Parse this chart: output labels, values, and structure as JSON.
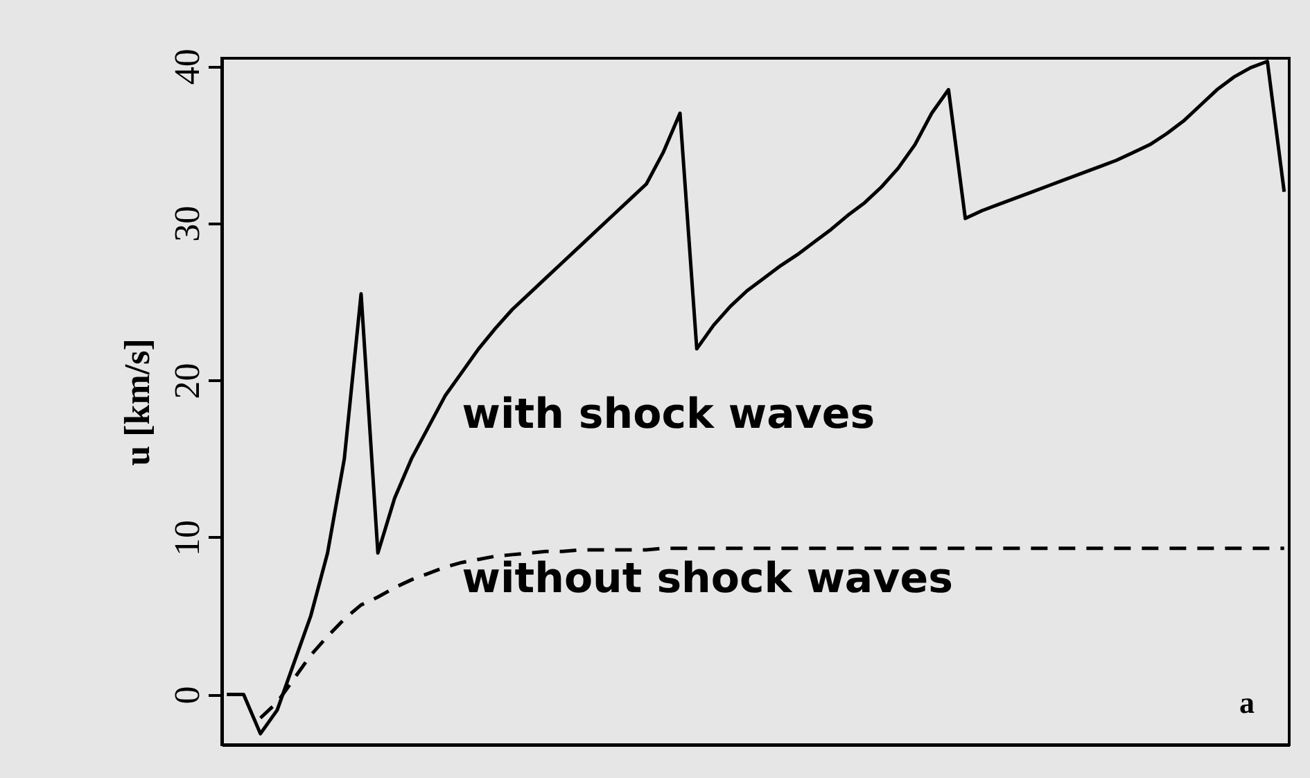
{
  "chart_data": {
    "type": "line",
    "ylabel": "u [km/s]",
    "categories": [
      null,
      null,
      null,
      null,
      null,
      null,
      null,
      null,
      null,
      null,
      null,
      null,
      null,
      null,
      null,
      null,
      null,
      null,
      null,
      null,
      null,
      null,
      null,
      null,
      null,
      null,
      null,
      null,
      null,
      null,
      null,
      null,
      null,
      null,
      null,
      null,
      null,
      null,
      null,
      null,
      null,
      null,
      null,
      null,
      null,
      null,
      null,
      null,
      null,
      null,
      null,
      null,
      null,
      null,
      null,
      null,
      null,
      null,
      null,
      null,
      null,
      null,
      null,
      null
    ],
    "series": [
      {
        "name": "with shock waves",
        "color": "#000000",
        "line_style": "solid",
        "values": [
          0,
          0,
          -2.5,
          -1,
          2,
          5,
          9,
          15,
          25.5,
          9,
          12.5,
          15,
          17,
          19,
          20.5,
          22,
          23.3,
          24.5,
          25.5,
          26.5,
          27.5,
          28.5,
          29.5,
          30.5,
          31.5,
          32.5,
          34.5,
          37,
          22,
          23.5,
          24.7,
          25.7,
          26.5,
          27.3,
          28,
          28.8,
          29.6,
          30.5,
          31.3,
          32.3,
          33.5,
          35,
          37,
          38.5,
          30.3,
          30.8,
          31.2,
          31.6,
          32,
          32.4,
          32.8,
          33.2,
          33.6,
          34,
          34.5,
          35,
          35.7,
          36.5,
          37.5,
          38.5,
          39.3,
          39.9,
          40.3,
          32
        ]
      },
      {
        "name": "without shock waves",
        "color": "#000000",
        "line_style": "dashed",
        "values": [
          null,
          null,
          -1.5,
          -0.5,
          1,
          2.5,
          3.7,
          4.8,
          5.7,
          6.2,
          6.8,
          7.3,
          7.7,
          8.1,
          8.4,
          8.6,
          8.8,
          8.9,
          9.0,
          9.1,
          9.1,
          9.2,
          9.2,
          9.2,
          9.2,
          9.2,
          9.3,
          9.3,
          9.3,
          9.3,
          9.3,
          9.3,
          9.3,
          9.3,
          9.3,
          9.3,
          9.3,
          9.3,
          9.3,
          9.3,
          9.3,
          9.3,
          9.3,
          9.3,
          9.3,
          9.3,
          9.3,
          9.3,
          9.3,
          9.3,
          9.3,
          9.3,
          9.3,
          9.3,
          9.3,
          9.3,
          9.3,
          9.3,
          9.3,
          9.3,
          9.3,
          9.3,
          9.3,
          9.3
        ]
      }
    ],
    "ylim": [
      -3.2,
      40.5
    ],
    "yticks": [
      0,
      10,
      20,
      30,
      40
    ],
    "annotations": [
      "a"
    ],
    "grid": false,
    "marker": "none",
    "tick_labels": "y"
  }
}
